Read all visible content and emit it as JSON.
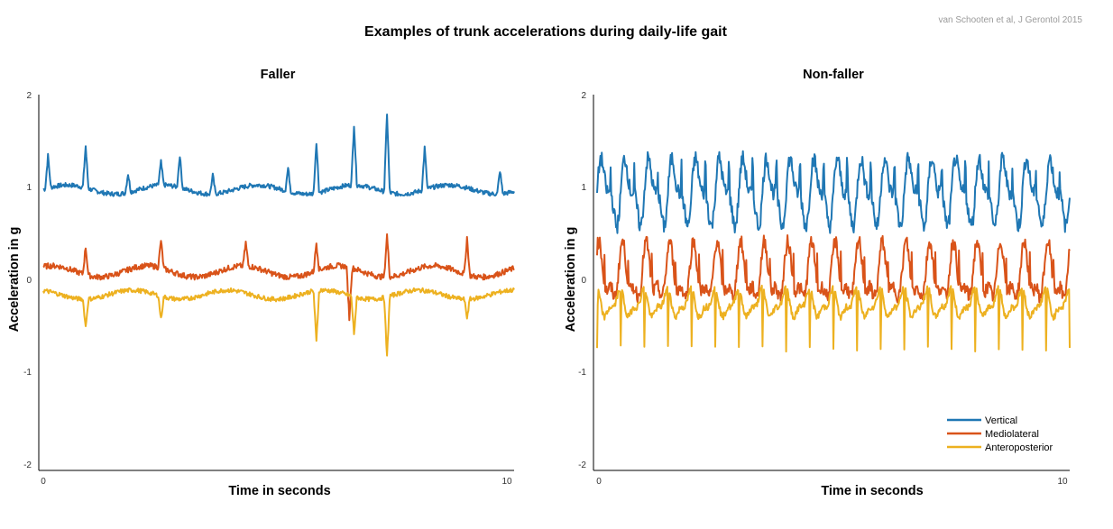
{
  "figure": {
    "title": "Examples of trunk accelerations during daily-life gait",
    "credit": "van Schooten et al, J Gerontol 2015"
  },
  "colors": {
    "vertical": "#1f77b4",
    "mediolateral": "#d95319",
    "anteroposterior": "#edb120",
    "axis": "#000000"
  },
  "legend": {
    "placement": "bottom-right of right panel",
    "items": [
      {
        "label": "Vertical",
        "color": "#1f77b4"
      },
      {
        "label": "Mediolateral",
        "color": "#d95319"
      },
      {
        "label": "Anteroposterior",
        "color": "#edb120"
      }
    ]
  },
  "chart_data": [
    {
      "type": "line",
      "title": "Faller",
      "xlabel": "Time in seconds",
      "ylabel": "Acceleration in g",
      "xlim": [
        0,
        10
      ],
      "ylim": [
        -2,
        2
      ],
      "xticks": [
        "0",
        "10"
      ],
      "yticks": [
        "2",
        "1",
        "0",
        "-1",
        "-2"
      ],
      "grid": false,
      "series": [
        {
          "name": "Vertical",
          "color": "#1f77b4",
          "baseline": 0.98,
          "amplitude": 0.08,
          "spikes": [
            [
              0.1,
              0.35
            ],
            [
              0.9,
              0.45
            ],
            [
              1.8,
              0.2
            ],
            [
              2.5,
              0.25
            ],
            [
              2.9,
              0.35
            ],
            [
              3.6,
              0.2
            ],
            [
              5.2,
              0.25
            ],
            [
              5.8,
              0.55
            ],
            [
              6.6,
              0.65
            ],
            [
              7.3,
              0.85
            ],
            [
              8.1,
              0.45
            ],
            [
              9.7,
              0.25
            ]
          ]
        },
        {
          "name": "Mediolateral",
          "color": "#d95319",
          "baseline": 0.1,
          "amplitude": 0.1,
          "spikes": [
            [
              0.9,
              0.3
            ],
            [
              2.5,
              0.3
            ],
            [
              4.3,
              0.25
            ],
            [
              5.8,
              0.3
            ],
            [
              6.5,
              -0.55
            ],
            [
              7.3,
              0.45
            ],
            [
              9.0,
              0.4
            ]
          ]
        },
        {
          "name": "Anteroposterior",
          "color": "#edb120",
          "baseline": -0.15,
          "amplitude": 0.08,
          "spikes": [
            [
              0.9,
              -0.3
            ],
            [
              2.5,
              -0.25
            ],
            [
              5.8,
              -0.55
            ],
            [
              6.6,
              -0.4
            ],
            [
              7.3,
              -0.65
            ],
            [
              9.0,
              -0.2
            ]
          ]
        }
      ]
    },
    {
      "type": "line",
      "title": "Non-faller",
      "xlabel": "Time in seconds",
      "ylabel": "Acceleration in g",
      "xlim": [
        0,
        10
      ],
      "ylim": [
        -2,
        2
      ],
      "xticks": [
        "0",
        "10"
      ],
      "yticks": [
        "2",
        "1",
        "0",
        "-1",
        "-2"
      ],
      "grid": false,
      "series": [
        {
          "name": "Vertical",
          "color": "#1f77b4",
          "baseline": 0.95,
          "amplitude": 0.28,
          "period": 0.5
        },
        {
          "name": "Mediolateral",
          "color": "#d95319",
          "baseline": 0.05,
          "amplitude": 0.25,
          "period": 0.5
        },
        {
          "name": "Anteroposterior",
          "color": "#edb120",
          "baseline": -0.25,
          "amplitude": 0.12,
          "period": 0.5,
          "dip": -0.65
        }
      ]
    }
  ]
}
